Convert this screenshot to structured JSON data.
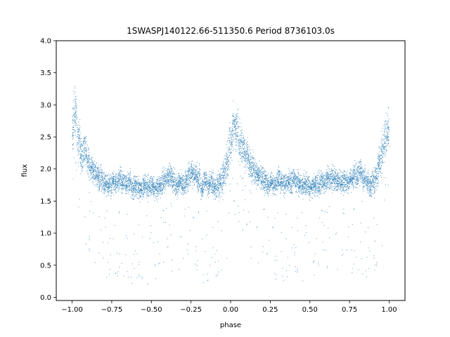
{
  "chart_data": {
    "type": "scatter",
    "title": "1SWASPJ140122.66-511350.6 Period 8736103.0s",
    "xlabel": "phase",
    "ylabel": "flux",
    "xlim": [
      -1.1,
      1.1
    ],
    "ylim": [
      -0.05,
      4.0
    ],
    "xticks": [
      -1.0,
      -0.75,
      -0.5,
      -0.25,
      0.0,
      0.25,
      0.5,
      0.75,
      1.0
    ],
    "xtick_labels": [
      "−1.00",
      "−0.75",
      "−0.50",
      "−0.25",
      "0.00",
      "0.25",
      "0.50",
      "0.75",
      "1.00"
    ],
    "yticks": [
      0.0,
      0.5,
      1.0,
      1.5,
      2.0,
      2.5,
      3.0,
      3.5,
      4.0
    ],
    "ytick_labels": [
      "0.0",
      "0.5",
      "1.0",
      "1.5",
      "2.0",
      "2.5",
      "3.0",
      "3.5",
      "4.0"
    ],
    "grid": false,
    "legend": "none",
    "marker_color": "#1f77b4",
    "series": [
      {
        "x": [
          -1.0,
          -0.98,
          -0.96,
          -0.94,
          -0.92,
          -0.9,
          -0.88,
          -0.86,
          -0.84,
          -0.82,
          -0.8,
          -0.78,
          -0.76,
          -0.74,
          -0.72,
          -0.7,
          -0.68,
          -0.66,
          -0.64,
          -0.62,
          -0.6,
          -0.58,
          -0.56,
          -0.54,
          -0.52,
          -0.5,
          -0.48,
          -0.46,
          -0.44,
          -0.42,
          -0.4,
          -0.38,
          -0.36,
          -0.34,
          -0.32,
          -0.3,
          -0.28,
          -0.26,
          -0.24,
          -0.22,
          -0.2,
          -0.18,
          -0.16,
          -0.14,
          -0.12,
          -0.1,
          -0.08,
          -0.06,
          -0.04,
          -0.02,
          0.0,
          0.02,
          0.04,
          0.06,
          0.08,
          0.1,
          0.12,
          0.14,
          0.16,
          0.18,
          0.2,
          0.22,
          0.24,
          0.26,
          0.28,
          0.3,
          0.32,
          0.34,
          0.36,
          0.38,
          0.4,
          0.42,
          0.44,
          0.46,
          0.48,
          0.5,
          0.52,
          0.54,
          0.56,
          0.58,
          0.6,
          0.62,
          0.64,
          0.66,
          0.68,
          0.7,
          0.72,
          0.74,
          0.76,
          0.78,
          0.8,
          0.82,
          0.84,
          0.86,
          0.88,
          0.9,
          0.92,
          0.94,
          0.96,
          0.98,
          1.0
        ],
        "y_mid": [
          2.6,
          2.9,
          2.5,
          2.2,
          2.3,
          2.1,
          2.0,
          1.95,
          1.9,
          1.85,
          1.8,
          1.75,
          1.75,
          1.8,
          1.8,
          1.85,
          1.8,
          1.75,
          1.8,
          1.7,
          1.75,
          1.7,
          1.7,
          1.75,
          1.7,
          1.75,
          1.7,
          1.7,
          1.75,
          1.8,
          1.85,
          1.9,
          1.8,
          1.75,
          1.8,
          1.75,
          1.8,
          1.9,
          1.95,
          1.9,
          1.85,
          1.7,
          1.8,
          1.75,
          1.8,
          1.7,
          1.75,
          1.8,
          1.95,
          2.1,
          2.4,
          2.7,
          2.6,
          2.4,
          2.3,
          2.2,
          2.1,
          2.0,
          1.95,
          1.9,
          1.85,
          1.8,
          1.75,
          1.8,
          1.75,
          1.85,
          1.8,
          1.75,
          1.8,
          1.8,
          1.85,
          1.8,
          1.75,
          1.75,
          1.75,
          1.7,
          1.75,
          1.75,
          1.75,
          1.8,
          1.8,
          1.85,
          1.85,
          1.85,
          1.8,
          1.8,
          1.8,
          1.8,
          1.85,
          1.9,
          1.9,
          1.95,
          1.85,
          1.8,
          1.75,
          1.8,
          1.9,
          2.1,
          2.3,
          2.5,
          2.6
        ],
        "y_spread": [
          0.6,
          0.6,
          0.55,
          0.5,
          0.45,
          0.4,
          0.4,
          0.35,
          0.35,
          0.35,
          0.35,
          0.3,
          0.3,
          0.3,
          0.3,
          0.3,
          0.3,
          0.3,
          0.3,
          0.3,
          0.3,
          0.3,
          0.3,
          0.3,
          0.3,
          0.3,
          0.3,
          0.3,
          0.3,
          0.3,
          0.3,
          0.3,
          0.3,
          0.3,
          0.3,
          0.3,
          0.3,
          0.35,
          0.35,
          0.35,
          0.35,
          0.3,
          0.3,
          0.3,
          0.3,
          0.3,
          0.35,
          0.4,
          0.45,
          0.5,
          0.55,
          0.6,
          0.55,
          0.5,
          0.45,
          0.45,
          0.4,
          0.4,
          0.35,
          0.35,
          0.35,
          0.3,
          0.3,
          0.3,
          0.3,
          0.3,
          0.3,
          0.3,
          0.3,
          0.3,
          0.3,
          0.3,
          0.3,
          0.3,
          0.3,
          0.3,
          0.3,
          0.3,
          0.3,
          0.3,
          0.3,
          0.3,
          0.3,
          0.35,
          0.3,
          0.3,
          0.3,
          0.3,
          0.3,
          0.35,
          0.35,
          0.35,
          0.3,
          0.3,
          0.3,
          0.35,
          0.4,
          0.45,
          0.5,
          0.55,
          0.6
        ]
      }
    ]
  }
}
